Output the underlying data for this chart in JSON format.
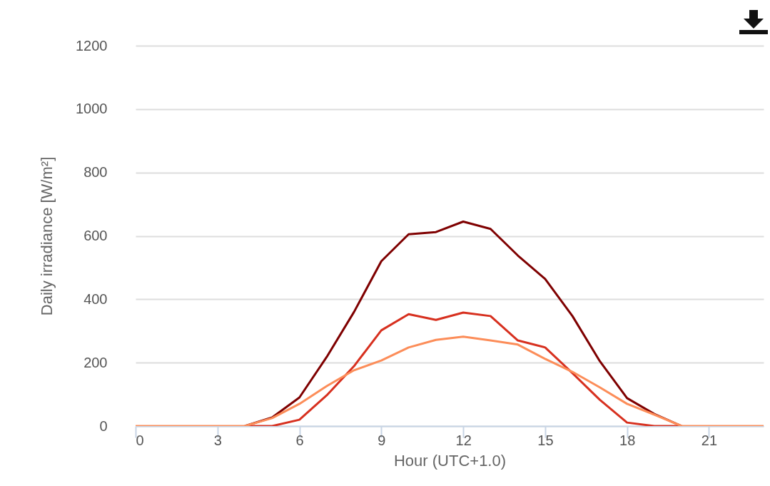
{
  "chart_data": {
    "type": "line",
    "xlabel": "Hour (UTC+1.0)",
    "ylabel": "Daily irradiance [W/m²]",
    "x": [
      0,
      1,
      2,
      3,
      4,
      5,
      6,
      7,
      8,
      9,
      10,
      11,
      12,
      13,
      14,
      15,
      16,
      17,
      18,
      19,
      20,
      21,
      22,
      23
    ],
    "series": [
      {
        "color": "#7f0000",
        "values": [
          null,
          null,
          null,
          null,
          0,
          27,
          90,
          218,
          360,
          520,
          605,
          612,
          645,
          622,
          538,
          464,
          347,
          205,
          88,
          38,
          0,
          null,
          null,
          null
        ]
      },
      {
        "color": "#d7301f",
        "values": [
          null,
          null,
          null,
          null,
          0,
          0,
          20,
          97,
          189,
          302,
          353,
          335,
          358,
          347,
          270,
          248,
          167,
          83,
          11,
          0,
          0,
          null,
          null,
          null
        ]
      },
      {
        "color": "#fc8d59",
        "values": [
          0,
          0,
          0,
          0,
          0,
          25,
          70,
          126,
          176,
          207,
          248,
          272,
          282,
          270,
          257,
          212,
          171,
          122,
          70,
          36,
          0,
          0,
          0,
          0
        ]
      }
    ],
    "xlim": [
      0,
      23
    ],
    "xticks": [
      0,
      3,
      6,
      9,
      12,
      15,
      18,
      21
    ],
    "ylim": [
      0,
      1200
    ],
    "yticks": [
      0,
      200,
      400,
      600,
      800,
      1000,
      1200
    ],
    "grid": "y",
    "marker": "none",
    "line_style": "solid"
  }
}
